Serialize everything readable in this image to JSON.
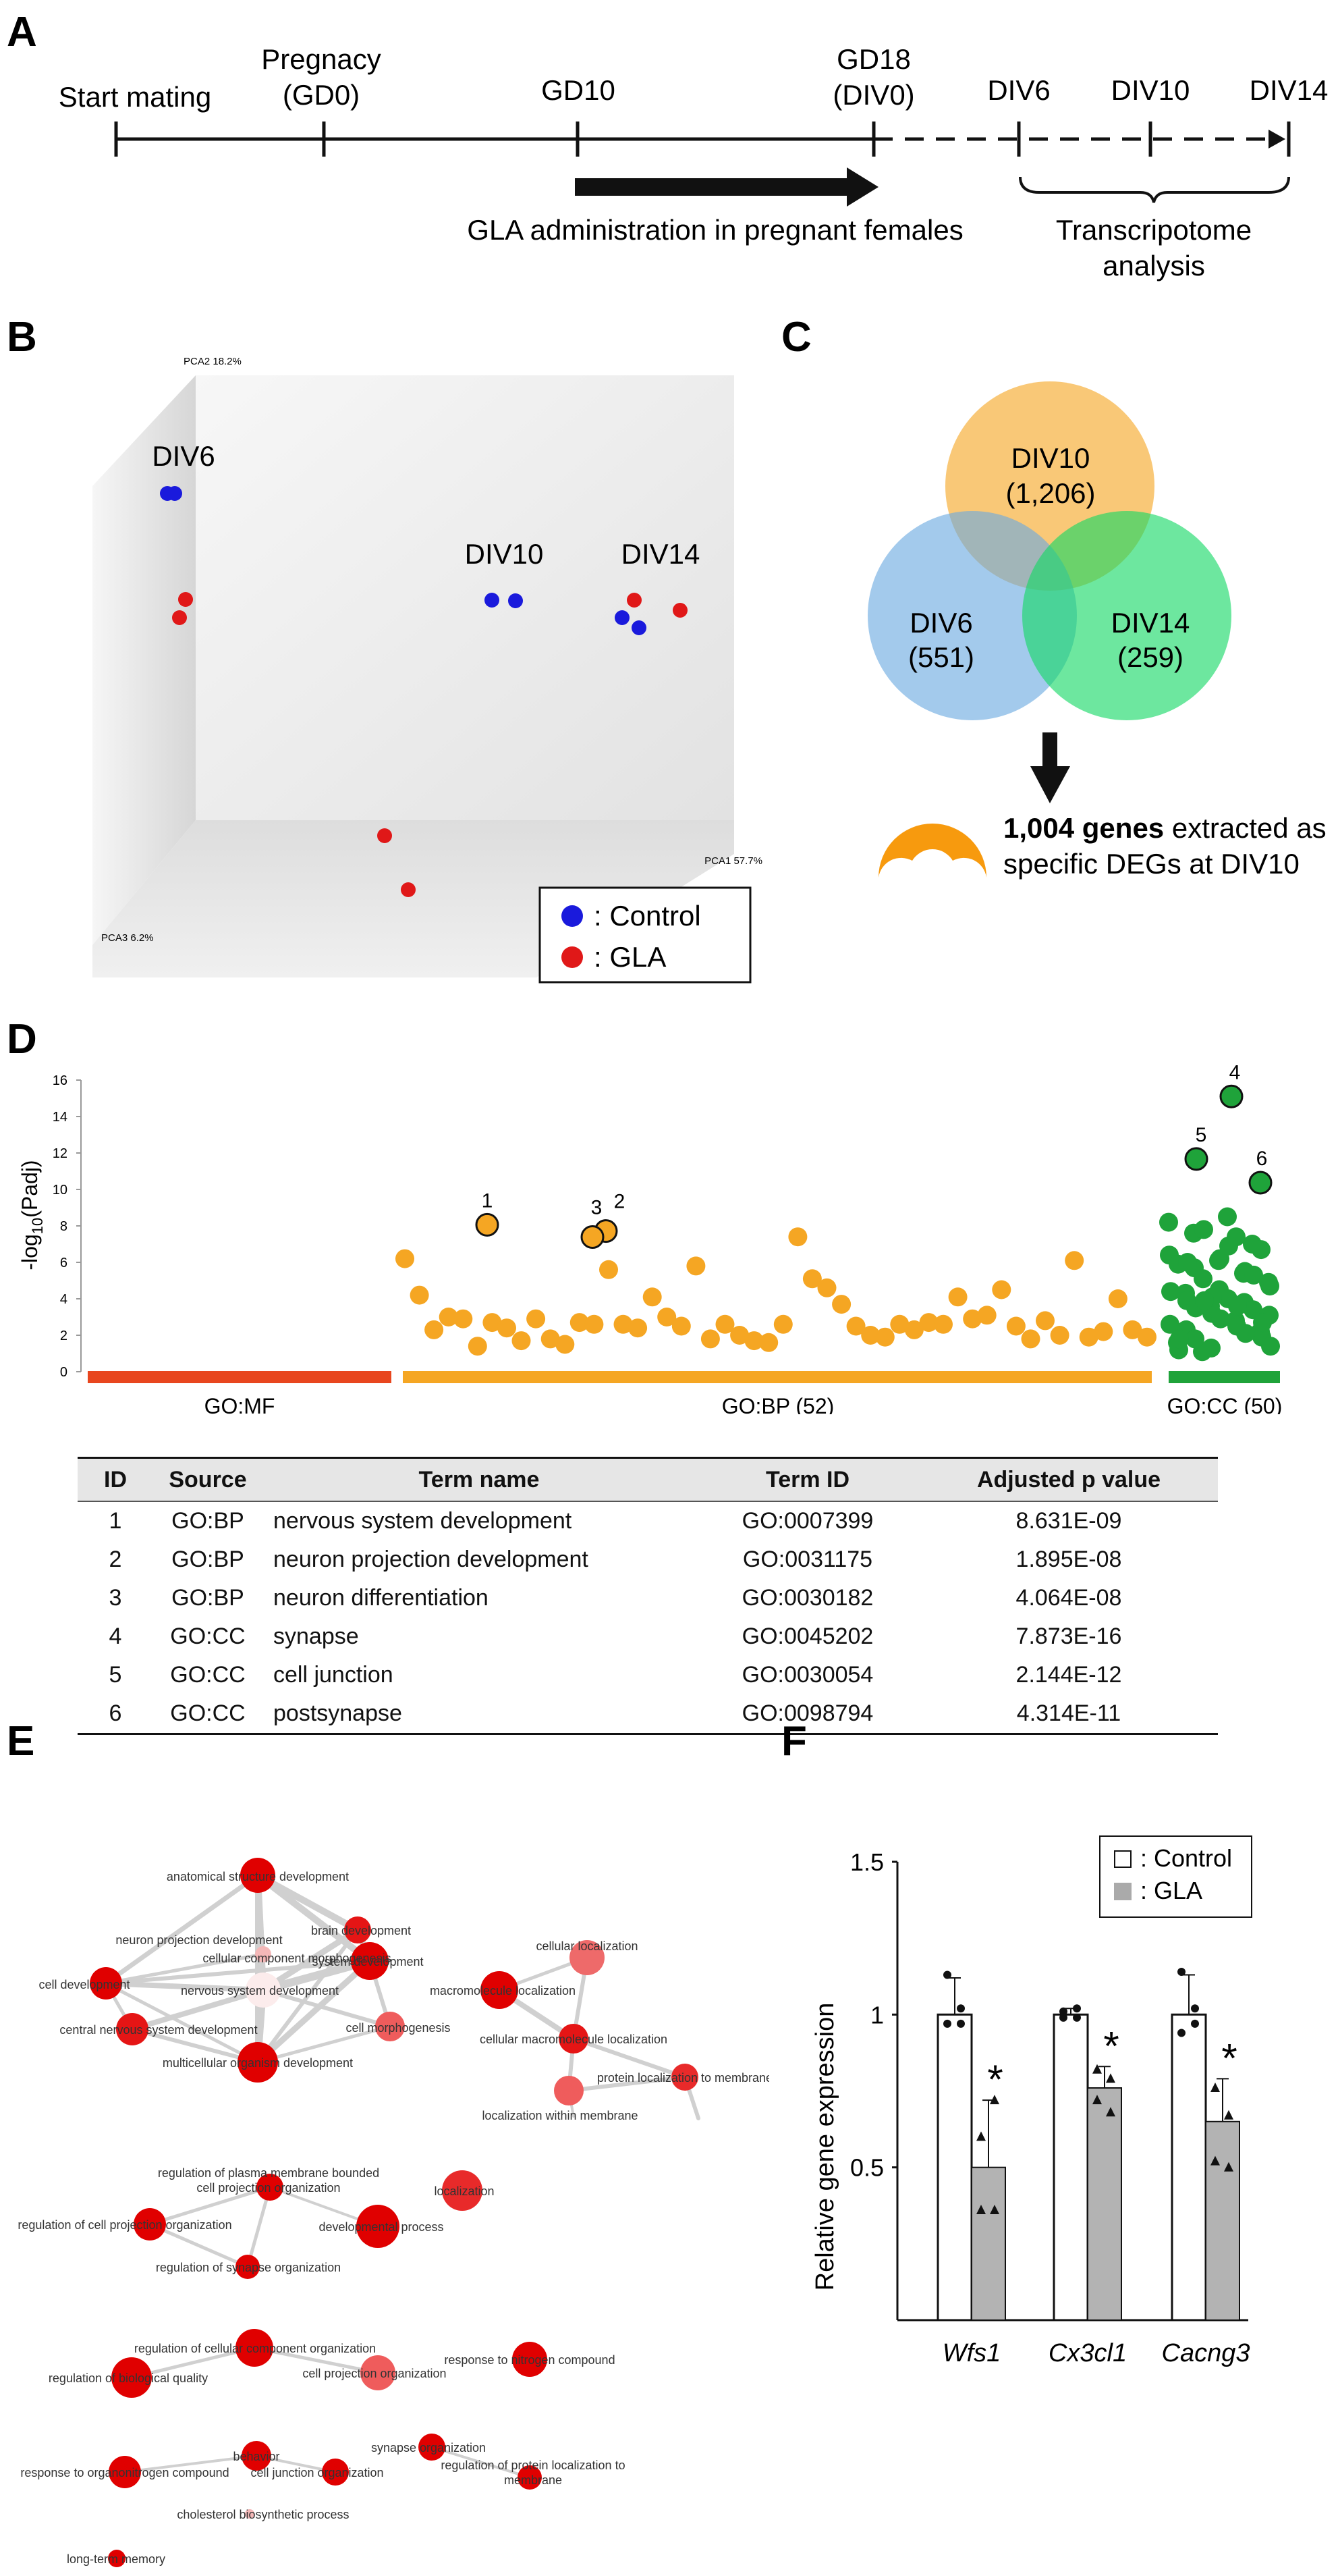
{
  "panels": {
    "a": "A",
    "b": "B",
    "c": "C",
    "d": "D",
    "e": "E",
    "f": "F"
  },
  "timeline": {
    "start_mating": "Start mating",
    "pregnancy_line1": "Pregnacy",
    "pregnancy_line2": "(GD0)",
    "gd10": "GD10",
    "gd18_line1": "GD18",
    "gd18_line2": "(DIV0)",
    "div6": "DIV6",
    "div10": "DIV10",
    "div14": "DIV14",
    "gla_admin": "GLA administration in pregnant females",
    "transcriptome_line1": "Transcripotome",
    "transcriptome_line2": "analysis"
  },
  "pca": {
    "pca2_axis": "PCA2 18.2%",
    "pca1_axis": "PCA1 57.7%",
    "pca3_axis": "PCA3 6.2%",
    "group_div6": "DIV6",
    "group_div10": "DIV10",
    "group_div14": "DIV14",
    "legend_control": ": Control",
    "legend_gla": ": GLA",
    "color_control": "#1a1adc",
    "color_gla": "#e01818"
  },
  "venn": {
    "div10_label": "DIV10",
    "div10_count": "(1,206)",
    "div6_label": "DIV6",
    "div6_count": "(551)",
    "div14_label": "DIV14",
    "div14_count": "(259)",
    "genes_bold": "1,004 genes",
    "genes_rest": " extracted as",
    "genes_line2": "specific DEGs at DIV10"
  },
  "chart_data": {
    "type": "scatter",
    "title": "",
    "xlabel": "",
    "ylabel": "-log10(Padj)",
    "ylim": [
      0,
      16
    ],
    "yticks": [
      0,
      2,
      4,
      6,
      8,
      10,
      12,
      14,
      16
    ],
    "categories": [
      "GO:MF",
      "GO:BP (52)",
      "GO:CC (50)"
    ],
    "labeled_points": [
      {
        "id": "1",
        "source": "GO:BP",
        "value": 8.06
      },
      {
        "id": "2",
        "source": "GO:BP",
        "value": 7.72
      },
      {
        "id": "3",
        "source": "GO:BP",
        "value": 7.39
      },
      {
        "id": "4",
        "source": "GO:CC",
        "value": 15.1
      },
      {
        "id": "5",
        "source": "GO:CC",
        "value": 11.67
      },
      {
        "id": "6",
        "source": "GO:CC",
        "value": 10.37
      }
    ],
    "series": [
      {
        "name": "GO:BP",
        "color": "#f5a623",
        "values": [
          6.2,
          4.2,
          2.3,
          3.0,
          2.9,
          1.4,
          2.7,
          2.4,
          1.7,
          2.9,
          1.8,
          1.5,
          2.7,
          2.6,
          5.6,
          2.6,
          2.4,
          4.1,
          3.0,
          2.5,
          5.8,
          1.8,
          2.6,
          2.0,
          1.7,
          1.6,
          2.6,
          7.4,
          5.1,
          4.6,
          3.7,
          2.5,
          2.0,
          1.9,
          2.6,
          2.3,
          2.7,
          2.6,
          4.1,
          2.9,
          3.1,
          4.5,
          2.5,
          1.8,
          2.8,
          2.0,
          6.1,
          1.9,
          2.2,
          4.0,
          2.3,
          1.9
        ]
      },
      {
        "name": "GO:CC",
        "color": "#1fa33a",
        "values": [
          8.2,
          7.6,
          6.1,
          5.4,
          4.9,
          4.3,
          3.6,
          2.8,
          2.2,
          1.6,
          1.1,
          8.5,
          7.0,
          6.4,
          5.7,
          4.5,
          3.8,
          3.1,
          2.3,
          1.3,
          7.4,
          6.7,
          5.9,
          5.1,
          4.0,
          3.4,
          2.6,
          1.8,
          6.2,
          5.5,
          4.7,
          3.9,
          3.2,
          2.5,
          1.9,
          1.2,
          7.8,
          6.9,
          5.3,
          4.4,
          3.5,
          2.9,
          2.1,
          1.4,
          6.0,
          4.1,
          3.6,
          2.7,
          1.8,
          3.9
        ]
      }
    ]
  },
  "go_table": {
    "headers": [
      "ID",
      "Source",
      "Term name",
      "Term ID",
      "Adjusted p value"
    ],
    "rows": [
      [
        "1",
        "GO:BP",
        "nervous system development",
        "GO:0007399",
        "8.631E-09"
      ],
      [
        "2",
        "GO:BP",
        "neuron projection development",
        "GO:0031175",
        "1.895E-08"
      ],
      [
        "3",
        "GO:BP",
        "neuron differentiation",
        "GO:0030182",
        "4.064E-08"
      ],
      [
        "4",
        "GO:CC",
        "synapse",
        "GO:0045202",
        "7.873E-16"
      ],
      [
        "5",
        "GO:CC",
        "cell junction",
        "GO:0030054",
        "2.144E-12"
      ],
      [
        "6",
        "GO:CC",
        "postsynapse",
        "GO:0098794",
        "4.314E-11"
      ]
    ]
  },
  "network": {
    "anatomical": "anatomical structure development",
    "brain": "brain development",
    "neuron_proj": "neuron projection development",
    "cc_morph": "cellular component morphogenesis",
    "cell_dev": "cell development",
    "nsd": "nervous system development",
    "system_dev": "system development",
    "cns_dev": "central nervous system development",
    "cell_morph": "cell morphogenesis",
    "multicell": "multicellular organism development",
    "cell_loc": "cellular localization",
    "macro_loc": "macromolecule localization",
    "cell_macro_loc": "cellular macromolecule localization",
    "prot_loc_membrane": "protein localization to membrane",
    "loc_membrane": "localization within membrane",
    "reg_plasma_1": "regulation of plasma membrane bounded",
    "reg_plasma_2": "cell projection organization",
    "localization": "localization",
    "reg_cell_proj": "regulation of cell projection organization",
    "dev_process": "developmental process",
    "reg_synapse": "regulation of synapse organization",
    "reg_cc_org": "regulation of cellular component organization",
    "resp_nitrogen": "response to nitrogen compound",
    "reg_bio_quality": "regulation of biological quality",
    "cell_proj_org": "cell projection organization",
    "synapse_org": "synapse organization",
    "behavior": "behavior",
    "reg_prot_loc_1": "regulation of protein localization to",
    "reg_prot_loc_2": "membrane",
    "resp_organo": "response to organonitrogen compound",
    "cell_junction_org": "cell junction organization",
    "cholesterol": "cholesterol biosynthetic process",
    "ltm": "long-term memory"
  },
  "bar_chart": {
    "type": "bar",
    "ylabel": "Relative gene expression",
    "yticks": [
      "0.5",
      "1",
      "1.5"
    ],
    "ylim": [
      0,
      1.5
    ],
    "categories": [
      "Wfs1",
      "Cx3cl1",
      "Cacng3"
    ],
    "legend_control": ": Control",
    "legend_gla": ": GLA",
    "sig_mark": "*",
    "series": [
      {
        "name": "Control",
        "values": [
          1.0,
          1.0,
          1.0
        ],
        "errors": [
          0.12,
          0.02,
          0.13
        ]
      },
      {
        "name": "GLA",
        "values": [
          0.5,
          0.76,
          0.65
        ],
        "errors": [
          0.22,
          0.07,
          0.14
        ]
      }
    ]
  }
}
